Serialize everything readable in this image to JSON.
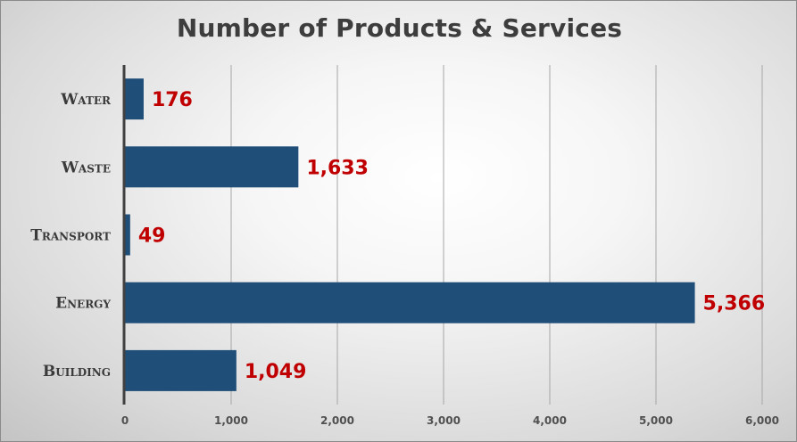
{
  "chart_data": {
    "type": "bar",
    "orientation": "horizontal",
    "title": "Number of Products & Services",
    "categories": [
      "Water",
      "Waste",
      "Transport",
      "Energy",
      "Building"
    ],
    "values": [
      176,
      1633,
      49,
      5366,
      1049
    ],
    "data_labels": [
      "176",
      "1,633",
      "49",
      "5,366",
      "1,049"
    ],
    "xlim": [
      0,
      6000
    ],
    "x_ticks": [
      0,
      1000,
      2000,
      3000,
      4000,
      5000,
      6000
    ],
    "x_tick_labels": [
      "0",
      "1,000",
      "2,000",
      "3,000",
      "4,000",
      "5,000",
      "6,000"
    ],
    "grid": "vertical",
    "legend": "none",
    "colors": {
      "bar": "#1f4e79",
      "data_label": "#c00000",
      "gridline": "#a6a6a6",
      "axis": "#404040"
    }
  }
}
